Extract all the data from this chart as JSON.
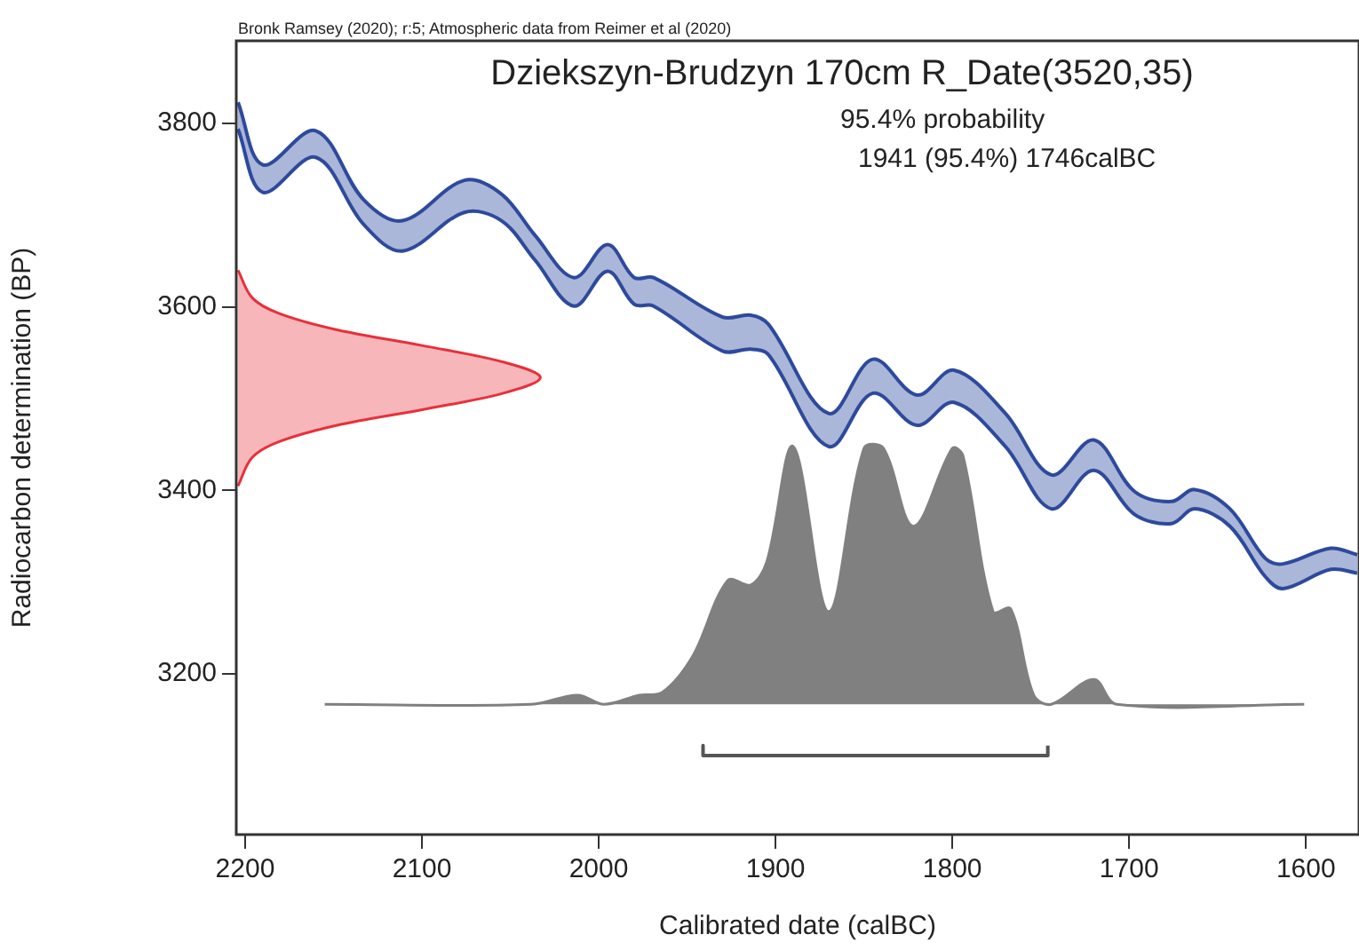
{
  "chart_data": {
    "type": "line",
    "title": "Dziekszyn-Brudzyn 170cm R_Date(3520,35)",
    "annotations": [
      "Bronk Ramsey (2020); r:5; Atmospheric data from Reimer et al (2020)",
      "95.4% probability",
      "1941 (95.4%) 1746calBC"
    ],
    "xlabel": "Calibrated date (calBC)",
    "ylabel": "Radiocarbon determination (BP)",
    "xlim": [
      2205,
      1570
    ],
    "xticks": [
      2200,
      2100,
      2000,
      1900,
      1800,
      1700,
      1600
    ],
    "ylim": [
      3025,
      3890
    ],
    "yticks": [
      3200,
      3400,
      3600,
      3800
    ],
    "grid": false,
    "legend": false,
    "marker": "none",
    "series": [
      {
        "color": "#2e4a9e",
        "x": [
          2204,
          2190,
          2160,
          2133,
          2111,
          2076,
          2055,
          2036,
          2014,
          1995,
          1980,
          1969,
          1930,
          1914,
          1904,
          1870,
          1845,
          1820,
          1799,
          1770,
          1744,
          1720,
          1697,
          1676,
          1663,
          1643,
          1623,
          1613,
          1586,
          1571
        ],
        "values": [
          3823,
          3755,
          3792,
          3717,
          3694,
          3738,
          3723,
          3678,
          3632,
          3668,
          3632,
          3632,
          3589,
          3591,
          3581,
          3484,
          3543,
          3504,
          3531,
          3484,
          3417,
          3455,
          3399,
          3388,
          3401,
          3380,
          3326,
          3320,
          3337,
          3330
        ],
        "upper": [
          3823,
          3755,
          3792,
          3717,
          3694,
          3738,
          3723,
          3678,
          3632,
          3668,
          3632,
          3632,
          3589,
          3591,
          3581,
          3484,
          3543,
          3504,
          3531,
          3484,
          3417,
          3455,
          3399,
          3388,
          3401,
          3380,
          3326,
          3320,
          3337,
          3330
        ],
        "lower": [
          3794,
          3725,
          3763,
          3690,
          3661,
          3703,
          3694,
          3651,
          3601,
          3639,
          3603,
          3601,
          3552,
          3554,
          3548,
          3448,
          3506,
          3471,
          3496,
          3448,
          3380,
          3422,
          3374,
          3364,
          3380,
          3361,
          3306,
          3293,
          3314,
          3310
        ]
      },
      {
        "color": "#2e4a9e",
        "x": [
          2204,
          2190,
          2160,
          2133,
          2111,
          2076,
          2055,
          2036,
          2014,
          1995,
          1980,
          1969,
          1930,
          1914,
          1904,
          1870,
          1845,
          1820,
          1799,
          1770,
          1744,
          1720,
          1697,
          1676,
          1663,
          1643,
          1623,
          1613,
          1586,
          1571
        ],
        "values": [
          3794,
          3725,
          3763,
          3690,
          3661,
          3703,
          3694,
          3651,
          3601,
          3639,
          3603,
          3601,
          3552,
          3554,
          3548,
          3448,
          3506,
          3471,
          3496,
          3448,
          3380,
          3422,
          3374,
          3364,
          3380,
          3361,
          3306,
          3293,
          3314,
          3310
        ]
      },
      {
        "type": "area",
        "color": "#e8303a",
        "x": [
          2204,
          2196,
          2181,
          2148,
          2100,
          2054,
          2033,
          2054,
          2100,
          2148,
          2181,
          2196,
          2204
        ],
        "values": [
          3640,
          3610,
          3593,
          3575,
          3558,
          3540,
          3523,
          3506,
          3488,
          3471,
          3453,
          3436,
          3405
        ]
      },
      {
        "type": "area",
        "color": "#808080",
        "x": [
          2155,
          2038,
          2012,
          1997,
          1977,
          1964,
          1947,
          1927,
          1914,
          1905,
          1890,
          1870,
          1850,
          1839,
          1822,
          1800,
          1794,
          1777,
          1767,
          1754,
          1744,
          1720,
          1707,
          1601
        ],
        "values": [
          3167,
          3167,
          3177,
          3167,
          3177,
          3180,
          3219,
          3302,
          3297,
          3322,
          3448,
          3268,
          3446,
          3446,
          3361,
          3446,
          3438,
          3268,
          3271,
          3177,
          3167,
          3194,
          3167,
          3167
        ]
      },
      {
        "color": "#555555",
        "x": [
          1941,
          1941,
          1746,
          1746
        ],
        "values": [
          3122,
          3111,
          3111,
          3122
        ]
      }
    ]
  }
}
